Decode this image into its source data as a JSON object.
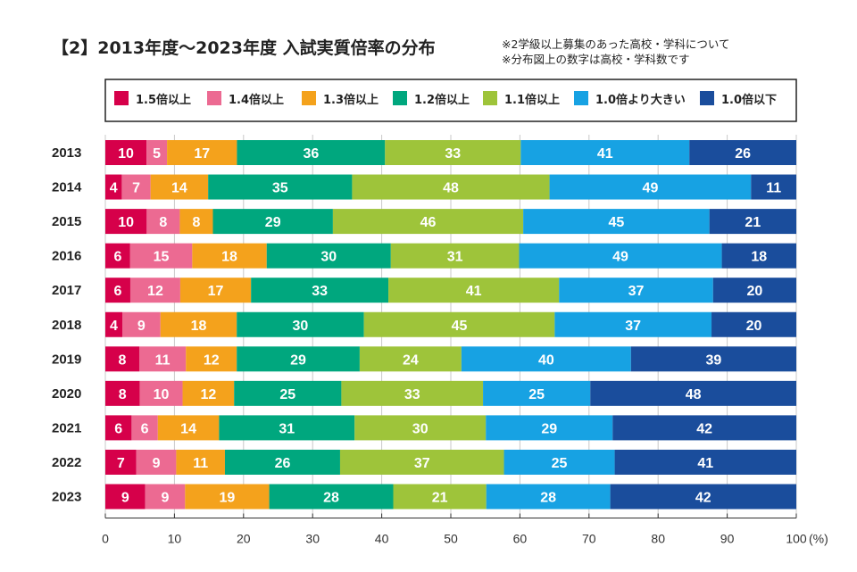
{
  "title": "【2】2013年度〜2023年度 入試実質倍率の分布",
  "notes": [
    "※2学級以上募集のあった高校・学科について",
    "※分布図上の数字は高校・学科数です"
  ],
  "chart_data": {
    "type": "bar",
    "orientation": "horizontal",
    "stacked": "percent",
    "categories": [
      "2013",
      "2014",
      "2015",
      "2016",
      "2017",
      "2018",
      "2019",
      "2020",
      "2021",
      "2022",
      "2023"
    ],
    "series": [
      {
        "name": "1.5倍以上",
        "color": "#d6004a",
        "values": [
          10,
          4,
          10,
          6,
          6,
          4,
          8,
          8,
          6,
          7,
          9
        ]
      },
      {
        "name": "1.4倍以上",
        "color": "#ec6a92",
        "values": [
          5,
          7,
          8,
          15,
          12,
          9,
          11,
          10,
          6,
          9,
          9
        ]
      },
      {
        "name": "1.3倍以上",
        "color": "#f4a21c",
        "values": [
          17,
          14,
          8,
          18,
          17,
          18,
          12,
          12,
          14,
          11,
          19
        ]
      },
      {
        "name": "1.2倍以上",
        "color": "#00a77e",
        "values": [
          36,
          35,
          29,
          30,
          33,
          30,
          29,
          25,
          31,
          26,
          28
        ]
      },
      {
        "name": "1.1倍以上",
        "color": "#9ec43a",
        "values": [
          33,
          48,
          46,
          31,
          41,
          45,
          24,
          33,
          30,
          37,
          21
        ]
      },
      {
        "name": "1.0倍より大きい",
        "color": "#17a2e3",
        "values": [
          41,
          49,
          45,
          49,
          37,
          37,
          40,
          25,
          29,
          25,
          28
        ]
      },
      {
        "name": "1.0倍以下",
        "color": "#1a4d9c",
        "values": [
          26,
          11,
          21,
          18,
          20,
          20,
          39,
          48,
          42,
          41,
          42
        ]
      }
    ],
    "x_ticks": [
      "0",
      "10",
      "20",
      "30",
      "40",
      "50",
      "60",
      "70",
      "80",
      "90",
      "100"
    ],
    "x_unit": "(%)",
    "xlim": [
      0,
      100
    ],
    "legend_position": "top",
    "grid": "vertical-ticks"
  }
}
